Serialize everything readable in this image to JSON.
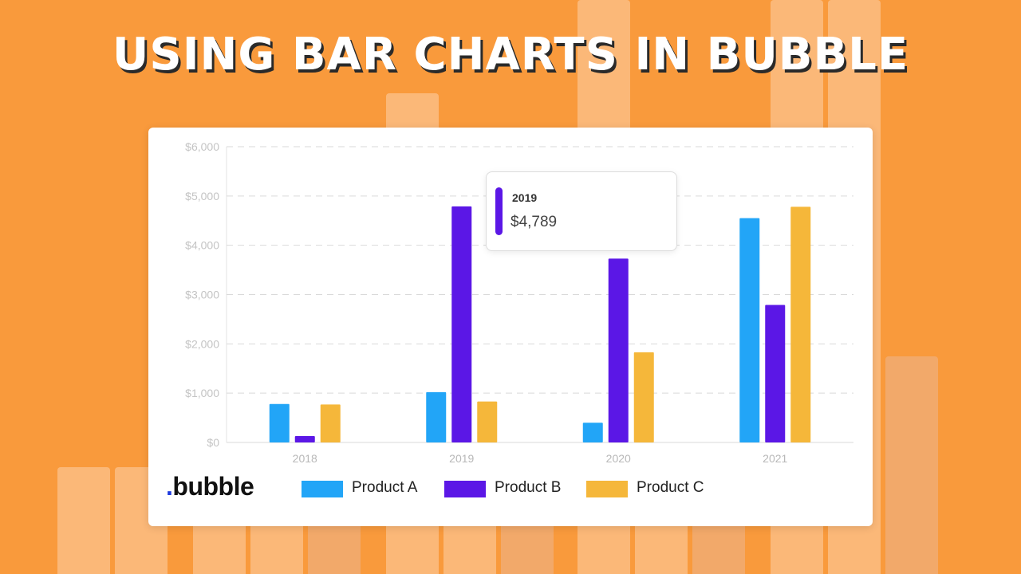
{
  "headline": "USING BAR CHARTS IN BUBBLE",
  "brand": {
    "dot": ".",
    "name": "bubble"
  },
  "tooltip": {
    "year": "2019",
    "value": "$4,789"
  },
  "colors": {
    "background": "#f99a3c",
    "product_a": "#22a5f7",
    "product_b": "#5b17e6",
    "product_c": "#f5b73a",
    "tooltip_accent": "#5b17e6"
  },
  "chart_data": {
    "type": "bar",
    "categories": [
      "2018",
      "2019",
      "2020",
      "2021"
    ],
    "series": [
      {
        "name": "Product A",
        "color": "#22a5f7",
        "values": [
          780,
          1020,
          400,
          4550
        ]
      },
      {
        "name": "Product B",
        "color": "#5b17e6",
        "values": [
          130,
          4789,
          3730,
          2790
        ]
      },
      {
        "name": "Product C",
        "color": "#f5b73a",
        "values": [
          770,
          830,
          1830,
          4780
        ]
      }
    ],
    "yticks": [
      "$0",
      "$1,000",
      "$2,000",
      "$3,000",
      "$4,000",
      "$5,000",
      "$6,000"
    ],
    "ylim": [
      0,
      6000
    ],
    "grid": true,
    "legend_position": "bottom"
  }
}
